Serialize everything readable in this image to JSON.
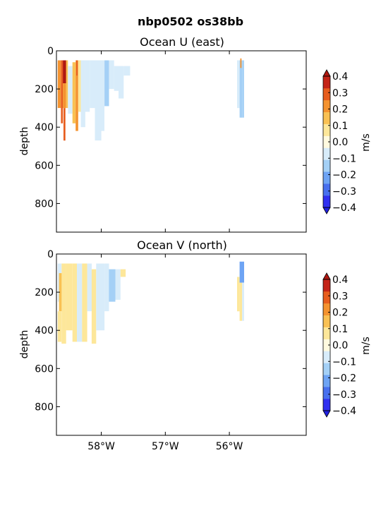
{
  "figure": {
    "title": "nbp0502 os38bb"
  },
  "colors": {
    "cmap": [
      "#3030f0",
      "#4870ee",
      "#6ea4f4",
      "#a4d0f6",
      "#d8ecfa",
      "#fffadf",
      "#fde79a",
      "#f9c154",
      "#f49330",
      "#e75d1e",
      "#c42418"
    ],
    "extend_min": "#2020e0",
    "extend_max": "#b01810",
    "axis": "#000000",
    "background": "#ffffff"
  },
  "chart_data": [
    {
      "type": "heatmap",
      "panel": "top",
      "title": "Ocean U (east)",
      "ylabel": "depth",
      "xlabel": "",
      "xlim": [
        -58.7,
        -54.8
      ],
      "ylim": [
        950,
        0
      ],
      "xticks": [
        -58,
        -57,
        -56
      ],
      "xtick_labels": [
        "58°W",
        "57°W",
        "56°W"
      ],
      "yticks": [
        0,
        200,
        400,
        600,
        800
      ],
      "ytick_labels": [
        "0",
        "200",
        "400",
        "600",
        "800"
      ],
      "colorbar": {
        "label": "m/s",
        "levels": [
          -0.4,
          -0.3,
          -0.2,
          -0.1,
          0.0,
          0.1,
          0.2,
          0.3,
          0.4
        ],
        "tick_labels": [
          "−0.4",
          "−0.3",
          "−0.2",
          "−0.1",
          "0.0",
          "0.1",
          "0.2",
          "0.3",
          "0.4"
        ]
      },
      "cells": [
        {
          "lon0": -58.68,
          "lon1": -58.63,
          "d0": 50,
          "d1": 300,
          "v": 0.22
        },
        {
          "lon0": -58.63,
          "lon1": -58.6,
          "d0": 50,
          "d1": 380,
          "v": 0.3
        },
        {
          "lon0": -58.6,
          "lon1": -58.53,
          "d0": 50,
          "d1": 170,
          "v": 0.42
        },
        {
          "lon0": -58.6,
          "lon1": -58.55,
          "d0": 170,
          "d1": 300,
          "v": 0.2
        },
        {
          "lon0": -58.59,
          "lon1": -58.56,
          "d0": 300,
          "d1": 470,
          "v": 0.3
        },
        {
          "lon0": -58.55,
          "lon1": -58.52,
          "d0": 50,
          "d1": 300,
          "v": 0.12
        },
        {
          "lon0": -58.52,
          "lon1": -58.45,
          "d0": 80,
          "d1": 330,
          "v": -0.05
        },
        {
          "lon0": -58.45,
          "lon1": -58.4,
          "d0": 60,
          "d1": 380,
          "v": 0.12
        },
        {
          "lon0": -58.4,
          "lon1": -58.36,
          "d0": 50,
          "d1": 420,
          "v": 0.2
        },
        {
          "lon0": -58.39,
          "lon1": -58.37,
          "d0": 50,
          "d1": 130,
          "v": 0.3
        },
        {
          "lon0": -58.36,
          "lon1": -58.32,
          "d0": 50,
          "d1": 320,
          "v": 0.08
        },
        {
          "lon0": -58.32,
          "lon1": -58.25,
          "d0": 50,
          "d1": 400,
          "v": -0.05
        },
        {
          "lon0": -58.25,
          "lon1": -58.18,
          "d0": 50,
          "d1": 320,
          "v": -0.08
        },
        {
          "lon0": -58.18,
          "lon1": -58.1,
          "d0": 50,
          "d1": 300,
          "v": -0.05
        },
        {
          "lon0": -58.1,
          "lon1": -58.0,
          "d0": 50,
          "d1": 470,
          "v": -0.05
        },
        {
          "lon0": -58.0,
          "lon1": -57.95,
          "d0": 50,
          "d1": 420,
          "v": -0.08
        },
        {
          "lon0": -57.95,
          "lon1": -57.88,
          "d0": 50,
          "d1": 290,
          "v": -0.12
        },
        {
          "lon0": -57.88,
          "lon1": -57.8,
          "d0": 50,
          "d1": 200,
          "v": -0.05
        },
        {
          "lon0": -57.8,
          "lon1": -57.73,
          "d0": 80,
          "d1": 210,
          "v": -0.05
        },
        {
          "lon0": -57.73,
          "lon1": -57.65,
          "d0": 80,
          "d1": 250,
          "v": -0.08
        },
        {
          "lon0": -57.65,
          "lon1": -57.55,
          "d0": 80,
          "d1": 130,
          "v": -0.05
        },
        {
          "lon0": -55.88,
          "lon1": -55.84,
          "d0": 50,
          "d1": 300,
          "v": -0.08
        },
        {
          "lon0": -55.84,
          "lon1": -55.8,
          "d0": 50,
          "d1": 350,
          "v": -0.18
        },
        {
          "lon0": -55.83,
          "lon1": -55.81,
          "d0": 40,
          "d1": 90,
          "v": 0.2
        },
        {
          "lon0": -55.8,
          "lon1": -55.77,
          "d0": 50,
          "d1": 350,
          "v": -0.12
        }
      ]
    },
    {
      "type": "heatmap",
      "panel": "bottom",
      "title": "Ocean V (north)",
      "ylabel": "depth",
      "xlabel": "",
      "xlim": [
        -58.7,
        -54.8
      ],
      "ylim": [
        950,
        0
      ],
      "xticks": [
        -58,
        -57,
        -56
      ],
      "xtick_labels": [
        "58°W",
        "57°W",
        "56°W"
      ],
      "yticks": [
        0,
        200,
        400,
        600,
        800
      ],
      "ytick_labels": [
        "0",
        "200",
        "400",
        "600",
        "800"
      ],
      "colorbar": {
        "label": "m/s",
        "levels": [
          -0.4,
          -0.3,
          -0.2,
          -0.1,
          0.0,
          0.1,
          0.2,
          0.3,
          0.4
        ],
        "tick_labels": [
          "−0.4",
          "−0.3",
          "−0.2",
          "−0.1",
          "0.0",
          "0.1",
          "0.2",
          "0.3",
          "0.4"
        ]
      },
      "cells": [
        {
          "lon0": -58.68,
          "lon1": -58.62,
          "d0": 50,
          "d1": 250,
          "v": -0.08
        },
        {
          "lon0": -58.66,
          "lon1": -58.58,
          "d0": 100,
          "d1": 300,
          "v": 0.15
        },
        {
          "lon0": -58.68,
          "lon1": -58.62,
          "d0": 300,
          "d1": 460,
          "v": 0.05
        },
        {
          "lon0": -58.62,
          "lon1": -58.55,
          "d0": 50,
          "d1": 470,
          "v": 0.05
        },
        {
          "lon0": -58.55,
          "lon1": -58.45,
          "d0": 50,
          "d1": 400,
          "v": 0.05
        },
        {
          "lon0": -58.45,
          "lon1": -58.38,
          "d0": 50,
          "d1": 460,
          "v": 0.08
        },
        {
          "lon0": -58.38,
          "lon1": -58.3,
          "d0": 50,
          "d1": 460,
          "v": -0.05
        },
        {
          "lon0": -58.3,
          "lon1": -58.22,
          "d0": 50,
          "d1": 460,
          "v": 0.05
        },
        {
          "lon0": -58.22,
          "lon1": -58.15,
          "d0": 50,
          "d1": 300,
          "v": -0.05
        },
        {
          "lon0": -58.15,
          "lon1": -58.08,
          "d0": 80,
          "d1": 470,
          "v": 0.05
        },
        {
          "lon0": -58.08,
          "lon1": -57.95,
          "d0": 50,
          "d1": 400,
          "v": -0.05
        },
        {
          "lon0": -57.95,
          "lon1": -57.88,
          "d0": 50,
          "d1": 300,
          "v": -0.05
        },
        {
          "lon0": -57.88,
          "lon1": -57.78,
          "d0": 80,
          "d1": 250,
          "v": -0.15
        },
        {
          "lon0": -57.78,
          "lon1": -57.7,
          "d0": 80,
          "d1": 240,
          "v": -0.05
        },
        {
          "lon0": -57.7,
          "lon1": -57.62,
          "d0": 80,
          "d1": 120,
          "v": 0.05
        },
        {
          "lon0": -55.88,
          "lon1": -55.84,
          "d0": 120,
          "d1": 300,
          "v": 0.05
        },
        {
          "lon0": -55.84,
          "lon1": -55.8,
          "d0": 150,
          "d1": 350,
          "v": 0.05
        },
        {
          "lon0": -55.84,
          "lon1": -55.77,
          "d0": 40,
          "d1": 150,
          "v": -0.25
        },
        {
          "lon0": -55.8,
          "lon1": -55.77,
          "d0": 150,
          "d1": 350,
          "v": -0.08
        }
      ]
    }
  ]
}
